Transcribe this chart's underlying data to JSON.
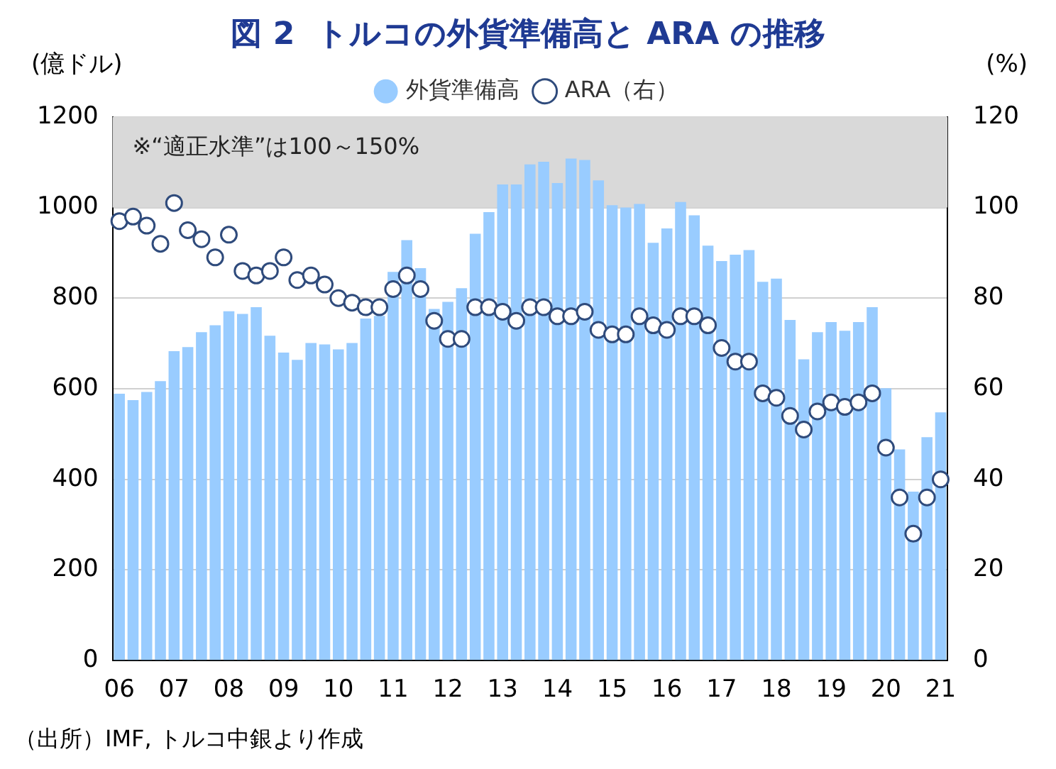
{
  "chart_data": {
    "type": "bar",
    "title": "図 2  トルコの外貨準備高と ARA の推移",
    "ylabel": "(億ドル)",
    "y2label": "(%)",
    "categories": [
      "06",
      null,
      null,
      null,
      "07",
      null,
      null,
      null,
      "08",
      null,
      null,
      null,
      "09",
      null,
      null,
      null,
      "10",
      null,
      null,
      null,
      "11",
      null,
      null,
      null,
      "12",
      null,
      null,
      null,
      "13",
      null,
      null,
      null,
      "14",
      null,
      null,
      null,
      "15",
      null,
      null,
      null,
      "16",
      null,
      null,
      null,
      "17",
      null,
      null,
      null,
      "18",
      null,
      null,
      null,
      "19",
      null,
      null,
      null,
      "20",
      null,
      null,
      null,
      "21"
    ],
    "series": [
      {
        "name": "外貨準備高",
        "color": "#99ccff",
        "values": [
          589,
          575,
          593,
          617,
          683,
          692,
          725,
          740,
          771,
          765,
          780,
          717,
          680,
          664,
          701,
          698,
          687,
          701,
          755,
          761,
          858,
          928,
          866,
          776,
          792,
          822,
          942,
          990,
          1051,
          1051,
          1095,
          1101,
          1054,
          1108,
          1105,
          1060,
          1005,
          1000,
          1008,
          922,
          954,
          1012,
          983,
          916,
          882,
          896,
          906,
          836,
          843,
          752,
          665,
          725,
          747,
          728,
          747,
          780,
          601,
          466,
          373,
          493,
          548
        ]
      },
      {
        "name": "ARA（右）",
        "type": "scatter",
        "axis": "y2",
        "color": "#2f4b7c",
        "marker": "circle",
        "values": [
          97,
          98,
          96,
          92,
          101,
          95,
          93,
          89,
          94,
          86,
          85,
          86,
          89,
          84,
          85,
          83,
          80,
          79,
          78,
          78,
          82,
          85,
          82,
          75,
          71,
          71,
          78,
          78,
          77,
          75,
          78,
          78,
          76,
          76,
          77,
          73,
          72,
          72,
          76,
          74,
          73,
          76,
          76,
          74,
          69,
          66,
          66,
          59,
          58,
          54,
          51,
          55,
          57,
          56,
          57,
          59,
          47,
          36,
          28,
          36,
          40
        ]
      }
    ],
    "ylim": [
      0,
      1200
    ],
    "yticks": [
      0,
      200,
      400,
      600,
      800,
      {
        "value": 1000,
        "label": "1000"
      },
      {
        "value": 1200,
        "label": "1200"
      }
    ],
    "y2lim": [
      0,
      120
    ],
    "y2ticks": [
      0,
      20,
      40,
      60,
      80,
      100,
      120
    ],
    "bands": [
      {
        "axis": "y2",
        "from": 100,
        "to": 120,
        "label": "※“適正水準”は100～150%",
        "color": "#d9d9d9"
      }
    ],
    "grid": "y",
    "legend": "top",
    "annotations": [
      "（出所）IMF, トルコ中銀より作成"
    ]
  }
}
